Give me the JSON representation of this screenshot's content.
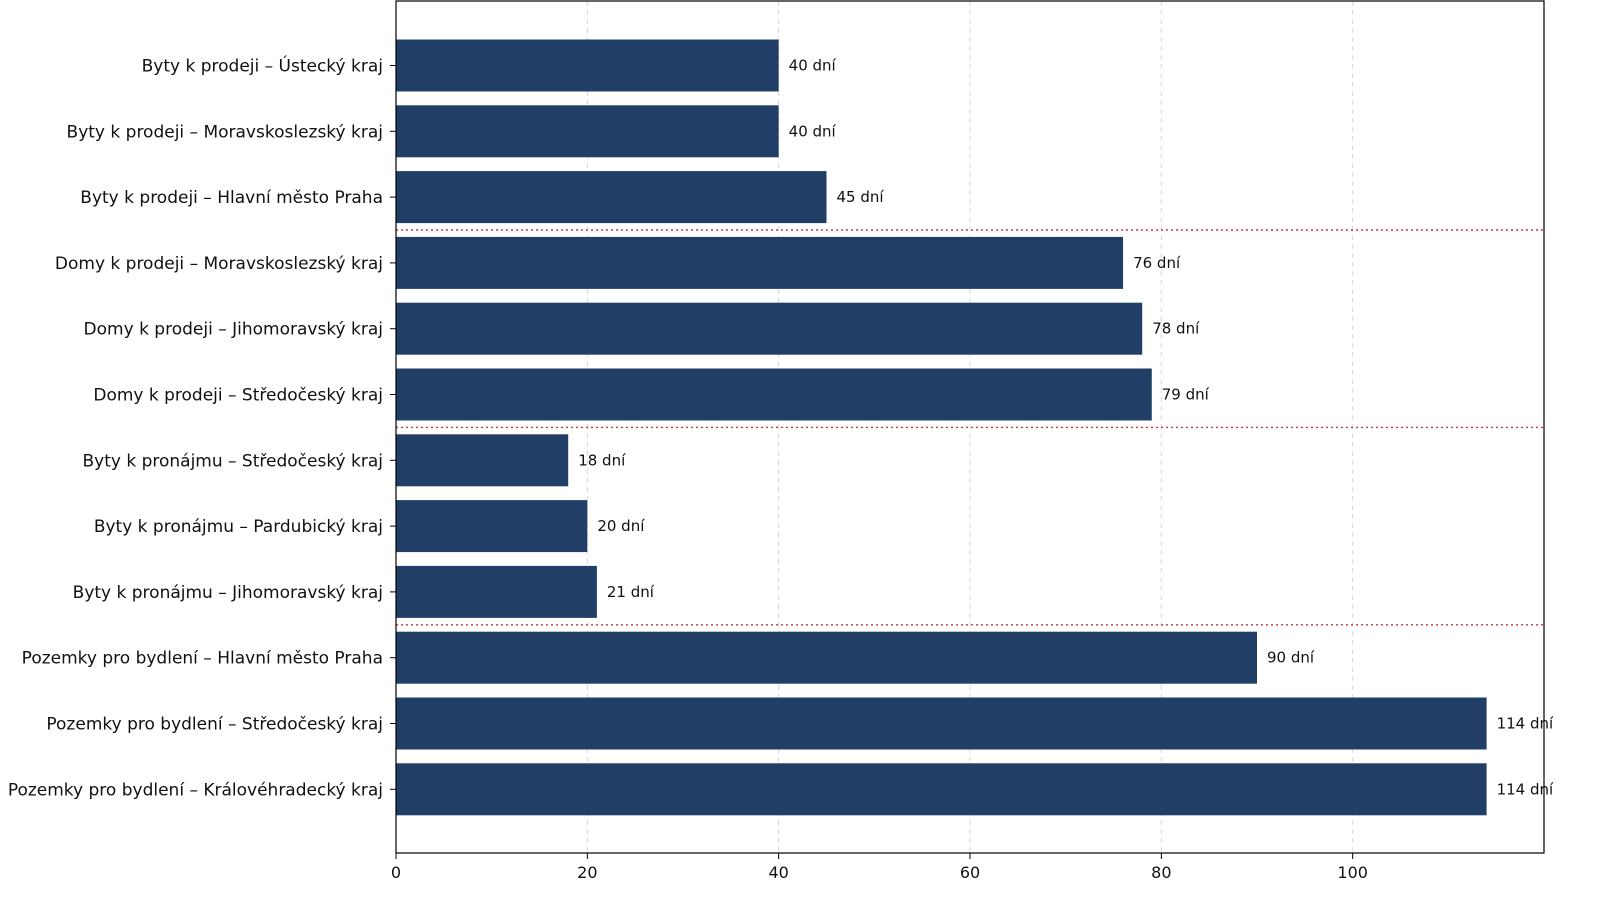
{
  "chart_data": {
    "type": "bar",
    "orientation": "horizontal",
    "categories": [
      "Byty k prodeji – Ústecký kraj",
      "Byty k prodeji – Moravskoslezský kraj",
      "Byty k prodeji – Hlavní město Praha",
      "Domy k prodeji – Moravskoslezský kraj",
      "Domy k prodeji – Jihomoravský kraj",
      "Domy k prodeji – Středočeský kraj",
      "Byty k pronájmu – Středočeský kraj",
      "Byty k pronájmu – Pardubický kraj",
      "Byty k pronájmu – Jihomoravský kraj",
      "Pozemky pro bydlení – Hlavní město Praha",
      "Pozemky pro bydlení – Středočeský kraj",
      "Pozemky pro bydlení – Královéhradecký kraj"
    ],
    "values": [
      40,
      40,
      45,
      76,
      78,
      79,
      18,
      20,
      21,
      90,
      114,
      114
    ],
    "value_labels": [
      "40 dní",
      "40 dní",
      "45 dní",
      "76 dní",
      "78 dní",
      "79 dní",
      "18 dní",
      "20 dní",
      "21 dní",
      "90 dní",
      "114 dní",
      "114 dní"
    ],
    "group_separators_after_index": [
      2,
      5,
      8
    ],
    "xticks": [
      0,
      20,
      40,
      60,
      80,
      100
    ],
    "xlim": [
      0,
      120
    ],
    "grid": "vertical dashed",
    "title": "",
    "xlabel": "",
    "ylabel": "",
    "colors": {
      "bar": "#213f66",
      "separator": "#cc3344",
      "grid": "#d8d8d8",
      "axis": "#000000"
    }
  }
}
